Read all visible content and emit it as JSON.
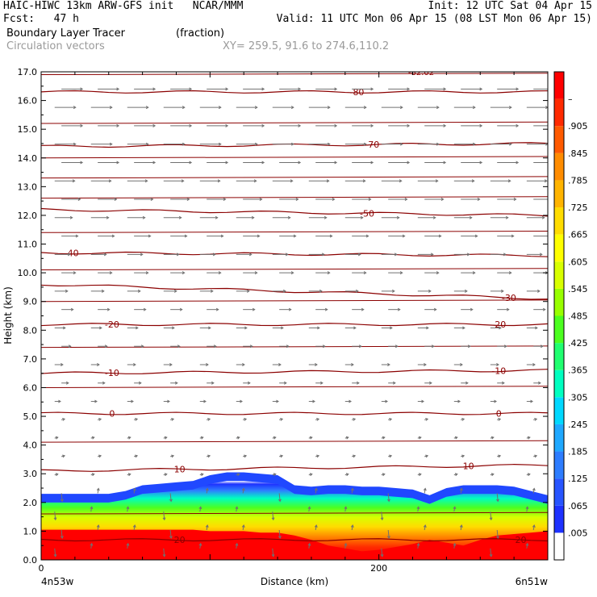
{
  "header": {
    "line1_left": "HAIC-HIWC 13km ARW-GFS init   NCAR/MMM",
    "line1_right": "Init: 12 UTC Sat 04 Apr 15",
    "line2_left": "Fcst:   47 h",
    "line2_right": "Valid: 11 UTC Mon 06 Apr 15 (08 LST Mon 06 Apr 15)",
    "field1_name": "Boundary Layer Tracer",
    "field1_units": "(fraction)",
    "field2_name": "Circulation vectors",
    "field2_xy": "XY= 259.5, 91.6 to 274.6,110.2"
  },
  "colors": {
    "contour": "#8b0000",
    "vector": "#707070",
    "axis": "#000000",
    "header_grey": "#9a9a9a"
  },
  "chart_data": {
    "type": "heatmap",
    "xlabel": "Distance (km)",
    "ylabel": "Height (km)",
    "xlim": [
      0,
      300
    ],
    "ylim": [
      0,
      17
    ],
    "x_ticks": [
      {
        "value": 0,
        "label": "0"
      },
      {
        "value": 200,
        "label": "200"
      }
    ],
    "x_end_labels": {
      "left": "4n53w",
      "right": "6n51w"
    },
    "y_ticks": [
      "0.0",
      "1.0",
      "2.0",
      "3.0",
      "4.0",
      "5.0",
      "6.0",
      "7.0",
      "8.0",
      "9.0",
      "10.0",
      "11.0",
      "12.0",
      "13.0",
      "14.0",
      "15.0",
      "16.0",
      "17.0"
    ],
    "colorbar": {
      "labels": [
        ".005",
        ".065",
        ".125",
        ".185",
        ".245",
        ".305",
        ".365",
        ".425",
        ".485",
        ".545",
        ".605",
        ".665",
        ".725",
        ".785",
        ".845",
        ".905",
        "–"
      ],
      "colors": [
        "#ffffff",
        "#1e32ff",
        "#2855ff",
        "#2e7dff",
        "#1fa8ff",
        "#00d8ff",
        "#00ffc0",
        "#20ff70",
        "#4cff20",
        "#98ff00",
        "#d8ff00",
        "#ffff00",
        "#ffdc00",
        "#ffb400",
        "#ff8c00",
        "#ff5a00",
        "#ff2a00",
        "#ff0000"
      ]
    },
    "tracer_profile": {
      "x": [
        0,
        10,
        20,
        30,
        40,
        50,
        60,
        70,
        80,
        90,
        100,
        110,
        120,
        130,
        140,
        150,
        160,
        170,
        180,
        190,
        200,
        210,
        220,
        230,
        240,
        250,
        260,
        270,
        280,
        290,
        300
      ],
      "top_height": [
        2.3,
        2.3,
        2.3,
        2.3,
        2.3,
        2.4,
        2.6,
        2.65,
        2.7,
        2.75,
        2.95,
        3.05,
        3.05,
        3.0,
        2.95,
        2.6,
        2.55,
        2.6,
        2.6,
        2.55,
        2.55,
        2.5,
        2.45,
        2.25,
        2.5,
        2.6,
        2.6,
        2.6,
        2.55,
        2.4,
        2.25
      ],
      "saturated_top": [
        1.05,
        1.05,
        1.05,
        1.05,
        1.05,
        1.05,
        1.05,
        1.05,
        1.05,
        1.05,
        1.0,
        1.0,
        1.0,
        0.95,
        0.95,
        0.85,
        0.7,
        0.5,
        0.4,
        0.3,
        0.35,
        0.45,
        0.55,
        0.7,
        0.6,
        0.5,
        0.7,
        0.85,
        0.9,
        0.95,
        1.0
      ]
    },
    "temperature_contours": [
      {
        "label": "-80",
        "y": [
          16.3,
          16.3
        ],
        "label_x": 187
      },
      {
        "label": "-70",
        "y": [
          14.4,
          14.5
        ],
        "label_x": 196
      },
      {
        "label": "-50",
        "y": [
          12.2,
          12.0
        ],
        "label_x": 193
      },
      {
        "label": "-40",
        "y": [
          10.7,
          10.6
        ],
        "label_x": 18
      },
      {
        "label": "-30",
        "y": [
          9.6,
          9.1
        ],
        "label_x": 277
      },
      {
        "label": "-20",
        "y": [
          8.2,
          8.2
        ],
        "label_x": [
          42,
          271
        ]
      },
      {
        "label": "-10",
        "y": [
          6.5,
          6.6
        ],
        "label_x": [
          42,
          271
        ]
      },
      {
        "label": "0",
        "y": [
          5.1,
          5.1
        ],
        "label_x": [
          42,
          271
        ]
      },
      {
        "label": "10",
        "y": [
          3.1,
          3.3
        ],
        "label_x": [
          82,
          253
        ]
      },
      {
        "label": "20",
        "y": [
          0.7,
          0.7
        ],
        "label_x": [
          82,
          284
        ]
      }
    ],
    "extra_contour_labels": [
      {
        "label": "-82.02",
        "x": 225,
        "y": 17.0
      }
    ],
    "wind_field": {
      "upper_direction": "eastward",
      "lower_direction": "vertical (ascending/descending)"
    }
  }
}
